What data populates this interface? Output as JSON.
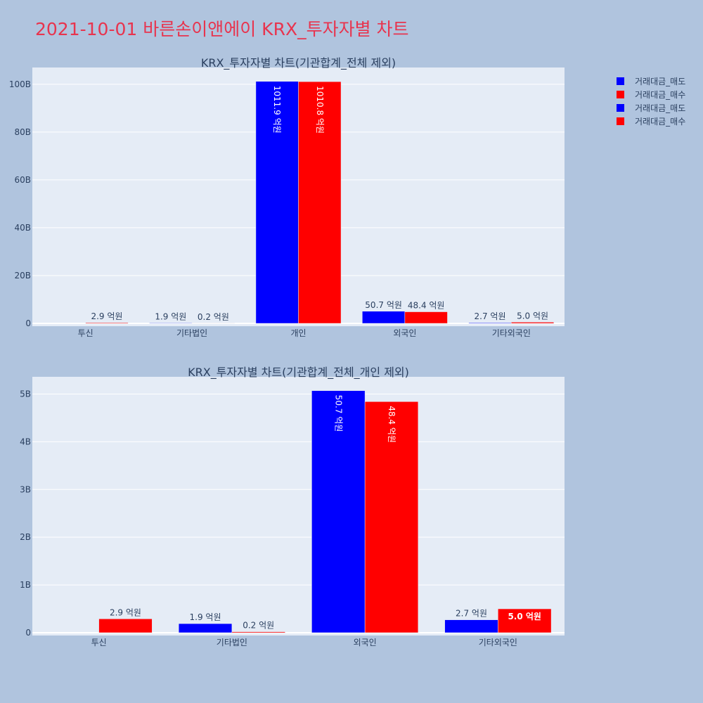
{
  "title": "2021-10-01 바른손이앤에이 KRX_투자자별 차트",
  "legend": [
    {
      "label": "거래대금_매도",
      "color": "#0000ff"
    },
    {
      "label": "거래대금_매수",
      "color": "#ff0000"
    },
    {
      "label": "거래대금_매도",
      "color": "#0000ff"
    },
    {
      "label": "거래대금_매수",
      "color": "#ff0000"
    }
  ],
  "chart_data": [
    {
      "type": "bar",
      "title": "KRX_투자자별 차트(기관합계_전체 제외)",
      "categories": [
        "투신",
        "기타법인",
        "개인",
        "외국인",
        "기타외국인"
      ],
      "series": [
        {
          "name": "거래대금_매도",
          "color": "#0000ff",
          "values": [
            0,
            190000000,
            101190000000,
            5070000000,
            270000000
          ],
          "labels": [
            "",
            "1.9 억원",
            "1011.9 억원",
            "50.7 억원",
            "2.7 억원"
          ]
        },
        {
          "name": "거래대금_매수",
          "color": "#ff0000",
          "values": [
            290000000,
            20000000,
            101080000000,
            4840000000,
            500000000
          ],
          "labels": [
            "2.9 억원",
            "0.2 억원",
            "1010.8 억원",
            "48.4 억원",
            "5.0 억원"
          ]
        }
      ],
      "yticks": [
        "0",
        "20B",
        "40B",
        "60B",
        "80B",
        "100B"
      ],
      "ytick_values": [
        0,
        20000000000,
        40000000000,
        60000000000,
        80000000000,
        100000000000
      ],
      "ylim": [
        0,
        107000000000
      ],
      "grid": true
    },
    {
      "type": "bar",
      "title": "KRX_투자자별 차트(기관합계_전체_개인 제외)",
      "categories": [
        "투신",
        "기타법인",
        "외국인",
        "기타외국인"
      ],
      "series": [
        {
          "name": "거래대금_매도",
          "color": "#0000ff",
          "values": [
            0,
            190000000,
            5070000000,
            270000000
          ],
          "labels": [
            "",
            "1.9 억원",
            "50.7 억원",
            "2.7 억원"
          ]
        },
        {
          "name": "거래대금_매수",
          "color": "#ff0000",
          "values": [
            290000000,
            20000000,
            4840000000,
            500000000
          ],
          "labels": [
            "2.9 억원",
            "0.2 억원",
            "48.4 억원",
            "5.0 억원"
          ]
        }
      ],
      "yticks": [
        "0",
        "1B",
        "2B",
        "3B",
        "4B",
        "5B"
      ],
      "ytick_values": [
        0,
        1000000000,
        2000000000,
        3000000000,
        4000000000,
        5000000000
      ],
      "ylim": [
        0,
        5360000000
      ],
      "grid": true
    }
  ]
}
